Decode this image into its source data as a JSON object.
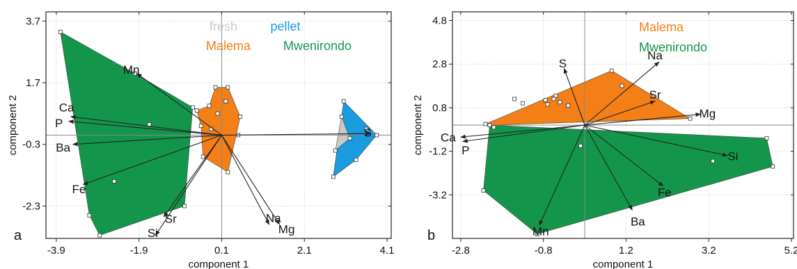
{
  "chart_data": [
    {
      "type": "scatter",
      "panel_label": "a",
      "xlabel": "component 1",
      "ylabel": "component 2",
      "xlim": [
        -4.15,
        4.2
      ],
      "ylim": [
        -3.35,
        4.0
      ],
      "xticks": [
        -3.9,
        -1.9,
        0.1,
        2.1,
        4.1
      ],
      "xtick_labels": [
        "-3.9",
        "-1.9",
        "0.1",
        "2.1",
        "4.1"
      ],
      "yticks": [
        3.7,
        1.7,
        -0.3,
        -2.3
      ],
      "ytick_labels": [
        "3.7",
        "1.7",
        "-0.3",
        "-2.3"
      ],
      "grid": true,
      "legend": [
        {
          "label": "fresh",
          "color": "#c8c8c8"
        },
        {
          "label": "pellet",
          "color": "#1a9be0"
        },
        {
          "label": "Malema",
          "color": "#f47f17"
        },
        {
          "label": "Mwenirondo",
          "color": "#13964b"
        }
      ],
      "legend_position": "top-center",
      "hulls": [
        {
          "name": "Mwenirondo",
          "color": "#13964b",
          "points": [
            [
              -3.8,
              3.35
            ],
            [
              -2.0,
              2.0
            ],
            [
              -0.6,
              0.9
            ],
            [
              -0.8,
              -2.3
            ],
            [
              -2.85,
              -3.25
            ],
            [
              -3.1,
              -2.6
            ]
          ]
        },
        {
          "name": "Malema",
          "color": "#f47f17",
          "points": [
            [
              -0.2,
              0.95
            ],
            [
              -0.05,
              1.55
            ],
            [
              0.25,
              1.55
            ],
            [
              0.55,
              0.6
            ],
            [
              0.25,
              -1.2
            ],
            [
              -0.35,
              -0.7
            ],
            [
              -0.4,
              0.3
            ],
            [
              -0.5,
              0.8
            ]
          ]
        },
        {
          "name": "pellet",
          "color": "#1a9be0",
          "points": [
            [
              3.05,
              1.1
            ],
            [
              3.85,
              0.0
            ],
            [
              3.35,
              -0.8
            ],
            [
              2.8,
              -1.35
            ]
          ]
        },
        {
          "name": "fresh",
          "color": "#c8c8c8",
          "points": [
            [
              3.0,
              0.6
            ],
            [
              3.2,
              -0.1
            ],
            [
              2.85,
              -0.5
            ]
          ]
        }
      ],
      "points": [
        [
          -3.8,
          3.35
        ],
        [
          -2.0,
          2.0
        ],
        [
          -0.6,
          0.9
        ],
        [
          -0.8,
          -2.3
        ],
        [
          -2.85,
          -3.25
        ],
        [
          -3.1,
          -2.6
        ],
        [
          -1.65,
          0.35
        ],
        [
          -2.5,
          -1.5
        ],
        [
          -0.2,
          0.95
        ],
        [
          -0.05,
          1.55
        ],
        [
          0.25,
          1.55
        ],
        [
          0.55,
          0.6
        ],
        [
          0.25,
          -1.2
        ],
        [
          -0.35,
          -0.7
        ],
        [
          -0.4,
          0.3
        ],
        [
          -0.5,
          0.8
        ],
        [
          0.0,
          0.7
        ],
        [
          0.2,
          1.1
        ],
        [
          -0.15,
          0.2
        ],
        [
          0.5,
          0.0
        ],
        [
          3.05,
          1.1
        ],
        [
          3.85,
          0.0
        ],
        [
          3.35,
          -0.8
        ],
        [
          2.8,
          -1.35
        ],
        [
          3.0,
          0.6
        ],
        [
          3.2,
          -0.1
        ],
        [
          2.85,
          -0.5
        ],
        [
          3.6,
          0.2
        ]
      ],
      "vectors": [
        {
          "label": "Mn",
          "x": -1.95,
          "y": 2.0
        },
        {
          "label": "Ca",
          "x": -3.55,
          "y": 0.6
        },
        {
          "label": "P",
          "x": -3.6,
          "y": 0.45
        },
        {
          "label": "Ba",
          "x": -3.5,
          "y": -0.3
        },
        {
          "label": "Fe",
          "x": -3.25,
          "y": -1.6
        },
        {
          "label": "S",
          "x": 3.7,
          "y": 0.05
        },
        {
          "label": "Na",
          "x": 1.25,
          "y": -2.9
        },
        {
          "label": "Mg",
          "x": 1.5,
          "y": -2.9
        },
        {
          "label": "Sr",
          "x": -1.3,
          "y": -2.65
        },
        {
          "label": "Si",
          "x": -1.5,
          "y": -3.25
        }
      ]
    },
    {
      "type": "scatter",
      "panel_label": "b",
      "xlabel": "component 1",
      "ylabel": "component 2",
      "xlim": [
        -3.0,
        5.25
      ],
      "ylim": [
        -5.2,
        5.2
      ],
      "xticks": [
        -2.8,
        -0.8,
        1.2,
        3.2,
        5.2
      ],
      "xtick_labels": [
        "-2.8",
        "-0.8",
        "1.2",
        "3.2",
        "5.2"
      ],
      "yticks": [
        4.8,
        2.8,
        0.8,
        -1.2,
        -3.2
      ],
      "ytick_labels": [
        "4.8",
        "2.8",
        "0.8",
        "-1.2",
        "-3.2"
      ],
      "grid": true,
      "legend": [
        {
          "label": "Malema",
          "color": "#f47f17"
        },
        {
          "label": "Mwenirondo",
          "color": "#13964b"
        }
      ],
      "legend_position": "top-right",
      "hulls": [
        {
          "name": "Mwenirondo",
          "color": "#13964b",
          "points": [
            [
              -2.1,
              0.0
            ],
            [
              4.6,
              -0.6
            ],
            [
              4.75,
              -1.9
            ],
            [
              -0.95,
              -5.0
            ],
            [
              -2.25,
              -3.0
            ]
          ]
        },
        {
          "name": "Malema",
          "color": "#f47f17",
          "points": [
            [
              -2.2,
              0.05
            ],
            [
              0.85,
              2.5
            ],
            [
              2.75,
              0.3
            ],
            [
              -2.1,
              0.0
            ]
          ]
        }
      ],
      "points": [
        [
          -2.1,
          0.0
        ],
        [
          -2.0,
          -0.1
        ],
        [
          4.6,
          -0.6
        ],
        [
          4.75,
          -1.9
        ],
        [
          -0.95,
          -5.0
        ],
        [
          -2.25,
          -3.0
        ],
        [
          -2.2,
          0.05
        ],
        [
          0.85,
          2.5
        ],
        [
          2.75,
          0.3
        ],
        [
          -1.5,
          1.2
        ],
        [
          -1.3,
          1.0
        ],
        [
          -0.75,
          1.15
        ],
        [
          -0.7,
          0.95
        ],
        [
          -0.5,
          1.35
        ],
        [
          -0.55,
          1.2
        ],
        [
          -0.2,
          0.9
        ],
        [
          1.1,
          1.8
        ],
        [
          0.1,
          -0.95
        ],
        [
          3.3,
          -1.65
        ],
        [
          -0.4,
          1.05
        ]
      ],
      "vectors": [
        {
          "label": "S",
          "x": -0.3,
          "y": 2.6
        },
        {
          "label": "Na",
          "x": 2.0,
          "y": 2.9
        },
        {
          "label": "Sr",
          "x": 1.9,
          "y": 1.1
        },
        {
          "label": "Mg",
          "x": 3.0,
          "y": 0.5
        },
        {
          "label": "Ca",
          "x": -2.8,
          "y": -0.55
        },
        {
          "label": "P",
          "x": -2.75,
          "y": -0.75
        },
        {
          "label": "Si",
          "x": 3.65,
          "y": -1.4
        },
        {
          "label": "Fe",
          "x": 2.1,
          "y": -2.8
        },
        {
          "label": "Ba",
          "x": 1.35,
          "y": -3.9
        },
        {
          "label": "Mn",
          "x": -0.9,
          "y": -4.6
        }
      ]
    }
  ]
}
